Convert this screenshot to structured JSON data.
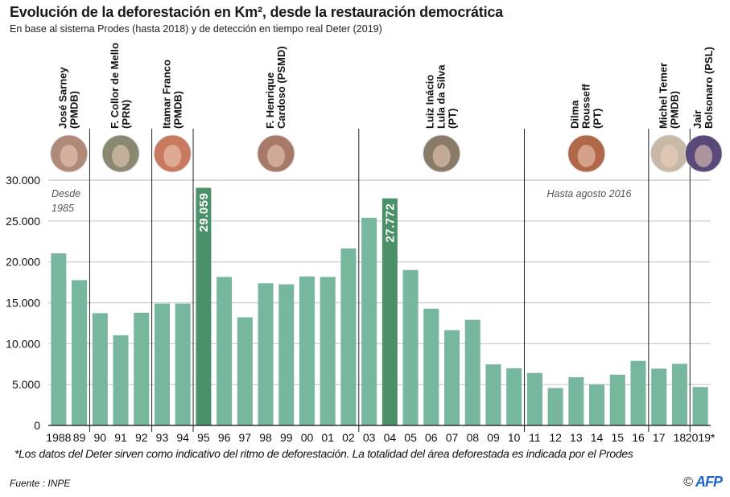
{
  "header": {
    "title": "Evolución de la deforestación en Km², desde la restauración democrática",
    "subtitle": "En base al sistema Prodes (hasta 2018) y de detección en tiempo real Deter (2019)"
  },
  "chart_data": {
    "type": "bar",
    "title": "Evolución de la deforestación en Km², desde la restauración democrática",
    "xlabel": "",
    "ylabel": "Km²",
    "ylim": [
      0,
      30000
    ],
    "yticks": [
      0,
      5000,
      10000,
      15000,
      20000,
      25000,
      30000
    ],
    "ytick_labels": [
      "0",
      "5.000",
      "10.000",
      "15.000",
      "20.000",
      "25.000",
      "30.000"
    ],
    "grid": true,
    "categories": [
      "1988",
      "89",
      "90",
      "91",
      "92",
      "93",
      "94",
      "95",
      "96",
      "97",
      "98",
      "99",
      "00",
      "01",
      "02",
      "03",
      "04",
      "05",
      "06",
      "07",
      "08",
      "09",
      "10",
      "11",
      "12",
      "13",
      "14",
      "15",
      "16",
      "17",
      "18",
      "2019*"
    ],
    "values": [
      21050,
      17770,
      13730,
      11030,
      13786,
      14896,
      14896,
      29059,
      18161,
      13227,
      17383,
      17259,
      18226,
      18165,
      21651,
      25396,
      27772,
      19014,
      14286,
      11651,
      12911,
      7464,
      7000,
      6418,
      4571,
      5891,
      5012,
      6207,
      7893,
      6947,
      7536,
      4700
    ],
    "highlighted": [
      {
        "category": "95",
        "label": "29.059"
      },
      {
        "category": "04",
        "label": "27.772"
      }
    ],
    "colors": {
      "bar": "#76b79d",
      "highlight": "#4a9068",
      "grid": "#c8c8c8",
      "divider": "#222222"
    },
    "annotations": [
      {
        "text": "Desde",
        "text2": "1985",
        "near": "1988"
      },
      {
        "text": "Hasta agosto 2016",
        "near": "13"
      }
    ],
    "presidencies": [
      {
        "name": "José Sarney",
        "party": "(PMDB)",
        "start": "1988",
        "end": "89",
        "photo_color": "#b08a78"
      },
      {
        "name": "F. Collor de Mello",
        "party": "(PRN)",
        "start": "90",
        "end": "92",
        "photo_color": "#8a8870"
      },
      {
        "name": "Itamar Franco",
        "party": "(PMDB)",
        "start": "93",
        "end": "94",
        "photo_color": "#c87a60"
      },
      {
        "name": "F. Henrique",
        "party": "Cardoso (PSMD)",
        "start": "95",
        "end": "02",
        "photo_color": "#a87868"
      },
      {
        "name": "Luiz Inácio",
        "name2": "Lula da Silva",
        "party": "(PT)",
        "start": "03",
        "end": "10",
        "photo_color": "#8a7a68"
      },
      {
        "name": "Dilma",
        "name2": "Rousseff",
        "party": "(PT)",
        "start": "11",
        "end": "16",
        "photo_color": "#b06848"
      },
      {
        "name": "Michel Temer",
        "party": "(PMDB)",
        "start": "17",
        "end": "18",
        "photo_color": "#c8b8a8"
      },
      {
        "name": "Jair",
        "party": "Bolsonaro (PSL)",
        "start": "2019*",
        "end": "2019*",
        "photo_color": "#5a4a7a"
      }
    ]
  },
  "footer": {
    "footnote": "*Los datos del Deter sirven como indicativo del ritmo de deforestación. La totalidad del área deforestada es indicada por el Prodes",
    "source": "Fuente : INPE",
    "copyright": "©",
    "agency": "AFP"
  }
}
